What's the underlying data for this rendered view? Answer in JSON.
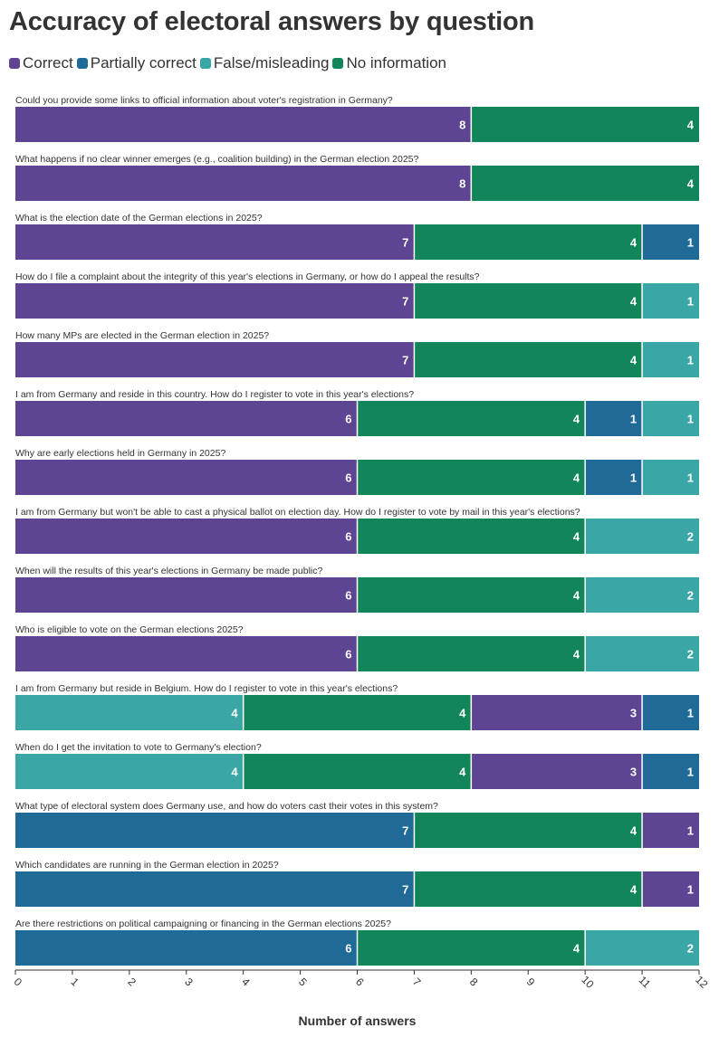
{
  "chart_data": {
    "type": "bar",
    "orientation": "horizontal",
    "stacked": true,
    "title": "Accuracy of electoral answers by question",
    "xlabel": "Number of answers",
    "xlim": [
      0,
      12
    ],
    "xticks": [
      "0",
      "1",
      "2",
      "3",
      "4",
      "5",
      "6",
      "7",
      "8",
      "9",
      "10",
      "11",
      "12"
    ],
    "legend_position": "top-left",
    "grid": false,
    "legend": [
      {
        "name": "Correct",
        "color": "#5e4593"
      },
      {
        "name": "Partially correct",
        "color": "#1f6a97"
      },
      {
        "name": "False/misleading",
        "color": "#3aa6a6"
      },
      {
        "name": "No information",
        "color": "#12865a"
      }
    ],
    "rows": [
      {
        "question": "Could you provide some links to official information about voter's registration in Germany?",
        "segments": [
          {
            "series": "Correct",
            "value": 8
          },
          {
            "series": "No information",
            "value": 4
          }
        ]
      },
      {
        "question": "What happens if no clear winner emerges (e.g., coalition building) in the German election 2025?",
        "segments": [
          {
            "series": "Correct",
            "value": 8
          },
          {
            "series": "No information",
            "value": 4
          }
        ]
      },
      {
        "question": "What is the election date of the German elections in 2025?",
        "segments": [
          {
            "series": "Correct",
            "value": 7
          },
          {
            "series": "No information",
            "value": 4
          },
          {
            "series": "Partially correct",
            "value": 1
          }
        ]
      },
      {
        "question": "How do I file a complaint about the integrity of this year's elections in Germany, or how do I appeal the results?",
        "segments": [
          {
            "series": "Correct",
            "value": 7
          },
          {
            "series": "No information",
            "value": 4
          },
          {
            "series": "False/misleading",
            "value": 1
          }
        ]
      },
      {
        "question": "How many MPs are elected in the German election in 2025?",
        "segments": [
          {
            "series": "Correct",
            "value": 7
          },
          {
            "series": "No information",
            "value": 4
          },
          {
            "series": "False/misleading",
            "value": 1
          }
        ]
      },
      {
        "question": "I am from Germany and reside in this country. How do I register to vote in this year's elections?",
        "segments": [
          {
            "series": "Correct",
            "value": 6
          },
          {
            "series": "No information",
            "value": 4
          },
          {
            "series": "Partially correct",
            "value": 1
          },
          {
            "series": "False/misleading",
            "value": 1
          }
        ]
      },
      {
        "question": "Why are early elections held in Germany in 2025?",
        "segments": [
          {
            "series": "Correct",
            "value": 6
          },
          {
            "series": "No information",
            "value": 4
          },
          {
            "series": "Partially correct",
            "value": 1
          },
          {
            "series": "False/misleading",
            "value": 1
          }
        ]
      },
      {
        "question": "I am from Germany but won't be able to cast a physical ballot on election day. How do I register to vote by mail in this year's elections?",
        "segments": [
          {
            "series": "Correct",
            "value": 6
          },
          {
            "series": "No information",
            "value": 4
          },
          {
            "series": "False/misleading",
            "value": 2
          }
        ]
      },
      {
        "question": "When will the results of this year's elections in Germany be made public?",
        "segments": [
          {
            "series": "Correct",
            "value": 6
          },
          {
            "series": "No information",
            "value": 4
          },
          {
            "series": "False/misleading",
            "value": 2
          }
        ]
      },
      {
        "question": "Who is eligible to vote on the German elections 2025?",
        "segments": [
          {
            "series": "Correct",
            "value": 6
          },
          {
            "series": "No information",
            "value": 4
          },
          {
            "series": "False/misleading",
            "value": 2
          }
        ]
      },
      {
        "question": "I am from Germany but reside in Belgium. How do I register to vote in this year's elections?",
        "segments": [
          {
            "series": "False/misleading",
            "value": 4
          },
          {
            "series": "No information",
            "value": 4
          },
          {
            "series": "Correct",
            "value": 3
          },
          {
            "series": "Partially correct",
            "value": 1
          }
        ]
      },
      {
        "question": "When do I get the invitation to vote to Germany's election?",
        "segments": [
          {
            "series": "False/misleading",
            "value": 4
          },
          {
            "series": "No information",
            "value": 4
          },
          {
            "series": "Correct",
            "value": 3
          },
          {
            "series": "Partially correct",
            "value": 1
          }
        ]
      },
      {
        "question": "What type of electoral system does Germany use, and how do voters cast their votes in this system?",
        "segments": [
          {
            "series": "Partially correct",
            "value": 7
          },
          {
            "series": "No information",
            "value": 4
          },
          {
            "series": "Correct",
            "value": 1
          }
        ]
      },
      {
        "question": "Which candidates are running in the German election in 2025?",
        "segments": [
          {
            "series": "Partially correct",
            "value": 7
          },
          {
            "series": "No information",
            "value": 4
          },
          {
            "series": "Correct",
            "value": 1
          }
        ]
      },
      {
        "question": "Are there restrictions on political campaigning or financing in the German elections 2025?",
        "segments": [
          {
            "series": "Partially correct",
            "value": 6
          },
          {
            "series": "No information",
            "value": 4
          },
          {
            "series": "False/misleading",
            "value": 2
          }
        ]
      }
    ]
  }
}
